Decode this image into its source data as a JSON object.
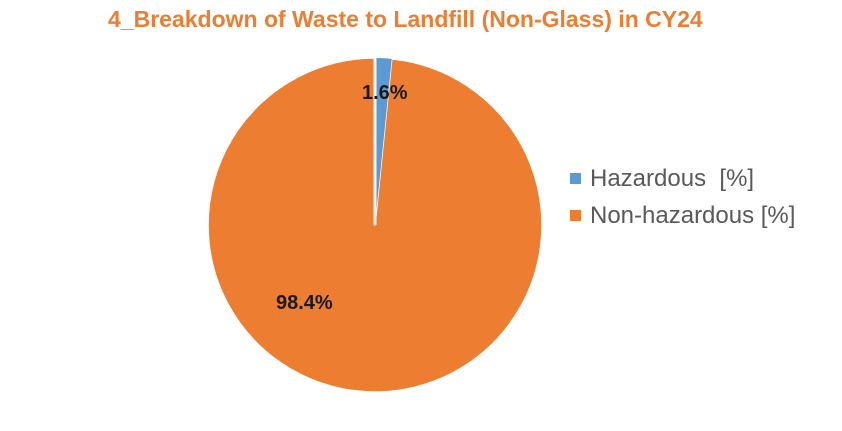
{
  "chart_data": {
    "type": "pie",
    "title": "4_Breakdown of Waste to Landfill (Non-Glass) in CY24",
    "categories": [
      "Hazardous  [%]",
      "Non-hazardous [%]"
    ],
    "values": [
      1.6,
      98.4
    ],
    "data_labels": [
      "1.6%",
      "98.4%"
    ],
    "colors": [
      "#5B9BD5",
      "#ED7D31"
    ],
    "start_angle_deg": 0,
    "direction": "clockwise",
    "legend_position": "right",
    "slice_border_color": "#FFFFFF"
  },
  "title": "4_Breakdown of Waste to Landfill (Non-Glass) in CY24",
  "labels": {
    "hazardous": "1.6%",
    "non_hazardous": "98.4%"
  },
  "legend": {
    "items": [
      {
        "label": "Hazardous  [%]",
        "color": "#5B9BD5"
      },
      {
        "label": "Non-hazardous [%]",
        "color": "#ED7D31"
      }
    ]
  }
}
